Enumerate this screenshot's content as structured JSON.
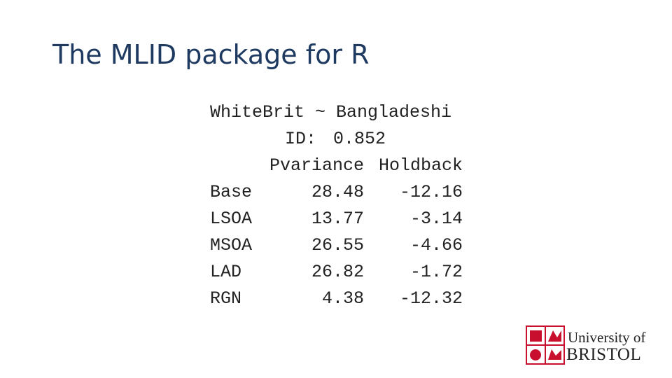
{
  "header": {
    "title": "The MLID package for R"
  },
  "output": {
    "formula": "WhiteBrit ~ Bangladeshi",
    "id_label": "ID:",
    "id_value": "0.852",
    "columns": [
      "Pvariance",
      "Holdback"
    ],
    "rows": [
      [
        "Base",
        "28.48",
        "-12.16"
      ],
      [
        "LSOA",
        "13.77",
        "-3.14"
      ],
      [
        "MSOA",
        "26.55",
        "-4.66"
      ],
      [
        "LAD",
        "26.82",
        "-1.72"
      ],
      [
        "RGN",
        "4.38",
        "-12.32"
      ]
    ]
  },
  "logo": {
    "line1": "University of",
    "line2": "BRISTOL"
  }
}
